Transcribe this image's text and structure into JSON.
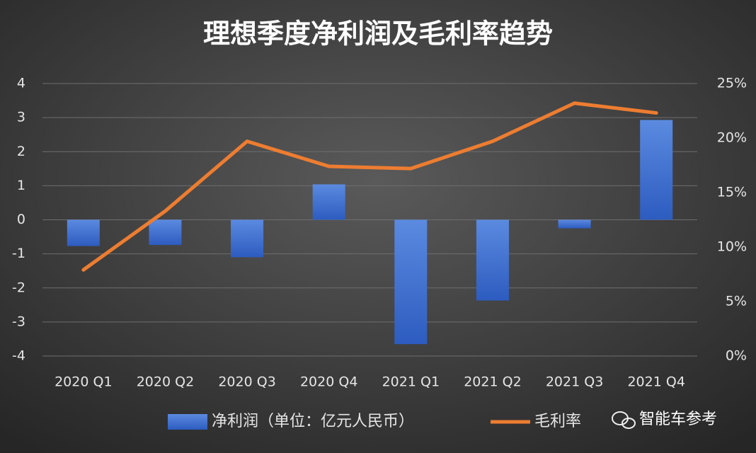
{
  "chart_data": {
    "type": "combo",
    "title": "理想季度净利润及毛利率趋势",
    "categories": [
      "2020 Q1",
      "2020 Q2",
      "2020 Q3",
      "2020 Q4",
      "2021 Q1",
      "2021 Q2",
      "2021 Q3",
      "2021 Q4"
    ],
    "series": [
      {
        "name": "净利润（单位：亿元人民币）",
        "type": "bar",
        "color": "#3d6fd1",
        "values": [
          -0.77,
          -0.74,
          -1.1,
          1.04,
          -3.65,
          -2.37,
          -0.25,
          2.93
        ]
      },
      {
        "name": "毛利率",
        "type": "line",
        "axis": "y2",
        "color": "#ed7d31",
        "values": [
          7.9,
          13.3,
          19.7,
          17.4,
          17.2,
          19.7,
          23.2,
          22.3
        ]
      }
    ],
    "ylim": [
      -4,
      4
    ],
    "yticks": [
      -4,
      -3,
      -2,
      -1,
      0,
      1,
      2,
      3,
      4
    ],
    "y2lim": [
      0,
      25
    ],
    "y2ticks": [
      {
        "value": 0,
        "label": "0%"
      },
      {
        "value": 5,
        "label": "5%"
      },
      {
        "value": 10,
        "label": "10%"
      },
      {
        "value": 15,
        "label": "15%"
      },
      {
        "value": 20,
        "label": "20%"
      },
      {
        "value": 25,
        "label": "25%"
      }
    ],
    "grid": true,
    "legend": "bottom",
    "watermark": "智能车参考"
  }
}
